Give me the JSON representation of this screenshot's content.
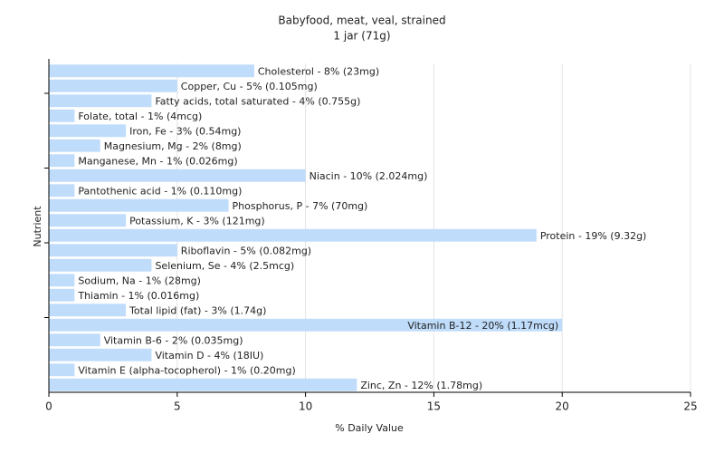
{
  "chart_data": {
    "type": "bar",
    "orientation": "horizontal",
    "title": "Babyfood, meat, veal, strained",
    "subtitle": "1 jar (71g)",
    "x_label": "% Daily Value",
    "y_label": "Nutrient",
    "values": [
      8,
      5,
      4,
      1,
      3,
      2,
      1,
      10,
      1,
      7,
      3,
      19,
      5,
      4,
      1,
      1,
      3,
      20,
      2,
      4,
      1,
      12
    ],
    "value_labels": [
      "Cholesterol - 8% (23mg)",
      "Copper, Cu - 5% (0.105mg)",
      "Fatty acids, total saturated - 4% (0.755g)",
      "Folate, total - 1% (4mcg)",
      "Iron, Fe - 3% (0.54mg)",
      "Magnesium, Mg - 2% (8mg)",
      "Manganese, Mn - 1% (0.026mg)",
      "Niacin - 10% (2.024mg)",
      "Pantothenic acid - 1% (0.110mg)",
      "Phosphorus, P - 7% (70mg)",
      "Potassium, K - 3% (121mg)",
      "Protein - 19% (9.32g)",
      "Riboflavin - 5% (0.082mg)",
      "Selenium, Se - 4% (2.5mcg)",
      "Sodium, Na - 1% (28mg)",
      "Thiamin - 1% (0.016mg)",
      "Total lipid (fat) - 3% (1.74g)",
      "Vitamin B-12 - 20% (1.17mcg)",
      "Vitamin B-6 - 2% (0.035mg)",
      "Vitamin D - 4% (18IU)",
      "Vitamin E (alpha-tocopherol) - 1% (0.20mg)",
      "Zinc, Zn - 12% (1.78mg)"
    ],
    "color": "#bfdcfb",
    "xlim": [
      0,
      25
    ],
    "xticks": [
      0,
      5,
      10,
      15,
      20,
      25
    ],
    "grid": true
  }
}
